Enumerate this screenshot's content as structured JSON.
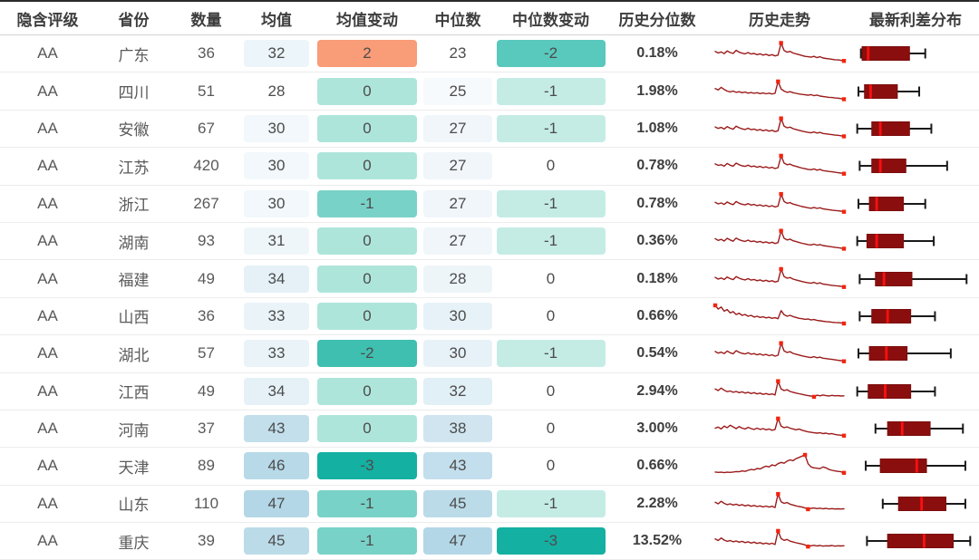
{
  "table": {
    "columns": [
      {
        "key": "rating",
        "label": "隐含评级"
      },
      {
        "key": "province",
        "label": "省份"
      },
      {
        "key": "count",
        "label": "数量"
      },
      {
        "key": "mean",
        "label": "均值"
      },
      {
        "key": "mean_change",
        "label": "均值变动"
      },
      {
        "key": "median",
        "label": "中位数"
      },
      {
        "key": "median_change",
        "label": "中位数变动"
      },
      {
        "key": "percentile",
        "label": "历史分位数"
      },
      {
        "key": "trend",
        "label": "历史走势"
      },
      {
        "key": "dist",
        "label": "最新利差分布"
      }
    ],
    "rows": [
      {
        "rating": "AA",
        "province": "广东",
        "count": 36,
        "mean": 32,
        "mean_bg": "#ECF5F9",
        "mean_change": 2,
        "mean_change_bg": "#F99C78",
        "median": 23,
        "median_bg": "#FFFFFF",
        "median_change": -2,
        "median_change_bg": "#59C8BD",
        "percentile": "0.18%",
        "trend": [
          58,
          50,
          55,
          47,
          60,
          52,
          48,
          63,
          54,
          49,
          46,
          52,
          45,
          48,
          42,
          46,
          40,
          44,
          38,
          42,
          36,
          40,
          98,
          62,
          54,
          58,
          50,
          46,
          42,
          38,
          34,
          32,
          30,
          34,
          28,
          32,
          26,
          24,
          22,
          20,
          18,
          17,
          15,
          12
        ],
        "box": {
          "lo": 5,
          "q1": 6,
          "med": 11,
          "q3": 45,
          "hi": 58
        }
      },
      {
        "rating": "AA",
        "province": "四川",
        "count": 51,
        "mean": 28,
        "mean_bg": "#FFFFFF",
        "mean_change": 0,
        "mean_change_bg": "#AEE5DB",
        "median": 25,
        "median_bg": "#F7FAFC",
        "median_change": -1,
        "median_change_bg": "#C4ECE5",
        "percentile": "1.98%",
        "trend": [
          62,
          55,
          68,
          58,
          50,
          46,
          50,
          44,
          47,
          42,
          45,
          40,
          43,
          39,
          42,
          38,
          41,
          37,
          40,
          36,
          39,
          96,
          60,
          50,
          44,
          47,
          42,
          39,
          36,
          34,
          32,
          30,
          33,
          28,
          31,
          26,
          24,
          22,
          20,
          19,
          17,
          16,
          14,
          11
        ],
        "box": {
          "lo": 3,
          "q1": 8,
          "med": 13,
          "q3": 35,
          "hi": 53
        }
      },
      {
        "rating": "AA",
        "province": "安徽",
        "count": 67,
        "mean": 30,
        "mean_bg": "#F2F8FB",
        "mean_change": 0,
        "mean_change_bg": "#AEE5DB",
        "median": 27,
        "median_bg": "#F0F6FA",
        "median_change": -1,
        "median_change_bg": "#C4ECE5",
        "percentile": "1.08%",
        "trend": [
          56,
          49,
          54,
          46,
          58,
          50,
          45,
          60,
          52,
          47,
          44,
          50,
          43,
          46,
          40,
          44,
          38,
          42,
          36,
          40,
          34,
          38,
          97,
          60,
          52,
          55,
          48,
          44,
          40,
          36,
          33,
          30,
          28,
          32,
          27,
          30,
          25,
          23,
          21,
          19,
          17,
          16,
          14,
          11
        ],
        "box": {
          "lo": 2,
          "q1": 14,
          "med": 21,
          "q3": 45,
          "hi": 63
        }
      },
      {
        "rating": "AA",
        "province": "江苏",
        "count": 420,
        "mean": 30,
        "mean_bg": "#F2F8FB",
        "mean_change": 0,
        "mean_change_bg": "#AEE5DB",
        "median": 27,
        "median_bg": "#F0F6FA",
        "median_change": 0,
        "median_change_bg": "#FFFFFF",
        "percentile": "0.78%",
        "trend": [
          57,
          50,
          53,
          46,
          59,
          51,
          46,
          61,
          53,
          48,
          45,
          51,
          44,
          47,
          41,
          45,
          39,
          43,
          37,
          41,
          35,
          39,
          96,
          61,
          53,
          56,
          49,
          45,
          41,
          37,
          34,
          31,
          29,
          33,
          27,
          31,
          25,
          23,
          21,
          19,
          17,
          15,
          13,
          10
        ],
        "box": {
          "lo": 4,
          "q1": 14,
          "med": 21,
          "q3": 42,
          "hi": 76
        }
      },
      {
        "rating": "AA",
        "province": "浙江",
        "count": 267,
        "mean": 30,
        "mean_bg": "#F2F8FB",
        "mean_change": -1,
        "mean_change_bg": "#79D2C7",
        "median": 27,
        "median_bg": "#F0F6FA",
        "median_change": -1,
        "median_change_bg": "#C4ECE5",
        "percentile": "0.78%",
        "trend": [
          55,
          48,
          52,
          45,
          57,
          49,
          44,
          59,
          51,
          46,
          43,
          49,
          42,
          45,
          39,
          43,
          37,
          41,
          35,
          39,
          33,
          37,
          95,
          59,
          51,
          54,
          47,
          43,
          39,
          35,
          32,
          29,
          27,
          31,
          26,
          29,
          24,
          22,
          20,
          18,
          16,
          15,
          13,
          10
        ],
        "box": {
          "lo": 3,
          "q1": 12,
          "med": 18,
          "q3": 40,
          "hi": 58
        }
      },
      {
        "rating": "AA",
        "province": "湖南",
        "count": 93,
        "mean": 31,
        "mean_bg": "#EFF6FA",
        "mean_change": 0,
        "mean_change_bg": "#AEE5DB",
        "median": 27,
        "median_bg": "#F0F6FA",
        "median_change": -1,
        "median_change_bg": "#C4ECE5",
        "percentile": "0.36%",
        "trend": [
          59,
          51,
          56,
          48,
          61,
          53,
          47,
          62,
          54,
          49,
          46,
          52,
          45,
          48,
          42,
          46,
          40,
          44,
          38,
          42,
          36,
          40,
          97,
          61,
          53,
          57,
          49,
          45,
          41,
          37,
          34,
          31,
          29,
          33,
          28,
          31,
          26,
          24,
          22,
          20,
          18,
          16,
          14,
          11
        ],
        "box": {
          "lo": 2,
          "q1": 10,
          "med": 18,
          "q3": 40,
          "hi": 65
        }
      },
      {
        "rating": "AA",
        "province": "福建",
        "count": 49,
        "mean": 34,
        "mean_bg": "#E5F1F7",
        "mean_change": 0,
        "mean_change_bg": "#AEE5DB",
        "median": 28,
        "median_bg": "#EDF5F9",
        "median_change": 0,
        "median_change_bg": "#FFFFFF",
        "percentile": "0.18%",
        "trend": [
          56,
          48,
          53,
          46,
          58,
          50,
          45,
          60,
          52,
          47,
          44,
          50,
          43,
          46,
          40,
          44,
          38,
          42,
          36,
          40,
          34,
          38,
          96,
          60,
          52,
          55,
          48,
          44,
          40,
          36,
          33,
          30,
          28,
          32,
          26,
          30,
          24,
          22,
          20,
          18,
          16,
          15,
          13,
          10
        ],
        "box": {
          "lo": 4,
          "q1": 17,
          "med": 24,
          "q3": 47,
          "hi": 92
        }
      },
      {
        "rating": "AA",
        "province": "山西",
        "count": 36,
        "mean": 33,
        "mean_bg": "#E9F3F8",
        "mean_change": 0,
        "mean_change_bg": "#AEE5DB",
        "median": 30,
        "median_bg": "#E7F2F8",
        "median_change": 0,
        "median_change_bg": "#FFFFFF",
        "percentile": "0.66%",
        "trend": [
          100,
          82,
          92,
          72,
          80,
          64,
          70,
          56,
          62,
          52,
          56,
          48,
          52,
          44,
          48,
          42,
          45,
          40,
          43,
          38,
          41,
          36,
          75,
          55,
          48,
          52,
          46,
          42,
          38,
          36,
          33,
          35,
          30,
          32,
          28,
          26,
          24,
          22,
          21,
          19,
          18,
          17,
          16,
          13
        ],
        "box": {
          "lo": 4,
          "q1": 14,
          "med": 27,
          "q3": 46,
          "hi": 66
        }
      },
      {
        "rating": "AA",
        "province": "湖北",
        "count": 57,
        "mean": 33,
        "mean_bg": "#E9F3F8",
        "mean_change": -2,
        "mean_change_bg": "#3FBFB0",
        "median": 30,
        "median_bg": "#E7F2F8",
        "median_change": -1,
        "median_change_bg": "#C4ECE5",
        "percentile": "0.54%",
        "trend": [
          57,
          49,
          54,
          47,
          59,
          51,
          46,
          61,
          53,
          48,
          45,
          51,
          44,
          47,
          41,
          45,
          39,
          43,
          37,
          41,
          35,
          39,
          97,
          60,
          52,
          56,
          48,
          44,
          40,
          36,
          33,
          30,
          28,
          32,
          27,
          30,
          25,
          23,
          21,
          19,
          17,
          15,
          13,
          10
        ],
        "box": {
          "lo": 3,
          "q1": 12,
          "med": 26,
          "q3": 43,
          "hi": 79
        }
      },
      {
        "rating": "AA",
        "province": "江西",
        "count": 49,
        "mean": 34,
        "mean_bg": "#E5F1F7",
        "mean_change": 0,
        "mean_change_bg": "#AEE5DB",
        "median": 32,
        "median_bg": "#E1EFF6",
        "median_change": 0,
        "median_change_bg": "#FFFFFF",
        "percentile": "2.94%",
        "trend": [
          60,
          52,
          64,
          54,
          47,
          50,
          44,
          48,
          42,
          46,
          40,
          44,
          38,
          42,
          36,
          40,
          34,
          38,
          33,
          36,
          31,
          97,
          60,
          52,
          56,
          48,
          44,
          40,
          37,
          34,
          31,
          28,
          26,
          22,
          30,
          27,
          31,
          28,
          26,
          29,
          27,
          28,
          26,
          27
        ],
        "box": {
          "lo": 2,
          "q1": 11,
          "med": 25,
          "q3": 46,
          "hi": 66
        }
      },
      {
        "rating": "AA",
        "province": "河南",
        "count": 37,
        "mean": 43,
        "mean_bg": "#C3DFEC",
        "mean_change": 0,
        "mean_change_bg": "#AEE5DB",
        "median": 38,
        "median_bg": "#D0E5F0",
        "median_change": 0,
        "median_change_bg": "#FFFFFF",
        "percentile": "3.00%",
        "trend": [
          50,
          55,
          46,
          60,
          52,
          64,
          56,
          48,
          58,
          50,
          46,
          54,
          48,
          44,
          50,
          44,
          48,
          42,
          46,
          40,
          44,
          96,
          60,
          52,
          56,
          50,
          46,
          42,
          46,
          40,
          36,
          32,
          30,
          28,
          26,
          28,
          24,
          26,
          22,
          24,
          20,
          18,
          16,
          14
        ],
        "box": {
          "lo": 17,
          "q1": 27,
          "med": 39,
          "q3": 62,
          "hi": 89
        }
      },
      {
        "rating": "AA",
        "province": "天津",
        "count": 89,
        "mean": 46,
        "mean_bg": "#B7D9E8",
        "mean_change": -3,
        "mean_change_bg": "#14B0A2",
        "median": 43,
        "median_bg": "#C3DEEC",
        "median_change": 0,
        "median_change_bg": "#FFFFFF",
        "percentile": "0.66%",
        "trend": [
          18,
          16,
          17,
          15,
          17,
          16,
          18,
          20,
          19,
          23,
          21,
          26,
          30,
          28,
          35,
          32,
          40,
          46,
          42,
          52,
          48,
          58,
          64,
          60,
          70,
          76,
          72,
          82,
          88,
          94,
          100,
          58,
          42,
          38,
          36,
          34,
          42,
          38,
          30,
          26,
          23,
          21,
          19,
          14
        ],
        "box": {
          "lo": 9,
          "q1": 21,
          "med": 51,
          "q3": 59,
          "hi": 91
        }
      },
      {
        "rating": "AA",
        "province": "山东",
        "count": 110,
        "mean": 47,
        "mean_bg": "#B3D7E7",
        "mean_change": -1,
        "mean_change_bg": "#79D2C7",
        "median": 45,
        "median_bg": "#BBDBE9",
        "median_change": -1,
        "median_change_bg": "#C4ECE5",
        "percentile": "2.28%",
        "trend": [
          55,
          48,
          60,
          50,
          44,
          48,
          42,
          46,
          40,
          44,
          38,
          42,
          36,
          40,
          35,
          38,
          33,
          37,
          32,
          36,
          30,
          95,
          58,
          50,
          54,
          46,
          42,
          38,
          35,
          32,
          28,
          22,
          26,
          28,
          25,
          27,
          24,
          26,
          23,
          25,
          23,
          24,
          23,
          24
        ],
        "box": {
          "lo": 23,
          "q1": 36,
          "med": 55,
          "q3": 75,
          "hi": 91
        }
      },
      {
        "rating": "AA",
        "province": "重庆",
        "count": 39,
        "mean": 45,
        "mean_bg": "#BBDBE9",
        "mean_change": -1,
        "mean_change_bg": "#79D2C7",
        "median": 47,
        "median_bg": "#B3D7E7",
        "median_change": -3,
        "median_change_bg": "#14B0A2",
        "percentile": "13.52%",
        "trend": [
          58,
          50,
          62,
          52,
          46,
          50,
          44,
          48,
          42,
          46,
          40,
          44,
          38,
          42,
          36,
          40,
          34,
          38,
          33,
          37,
          31,
          96,
          59,
          51,
          55,
          47,
          43,
          39,
          36,
          33,
          29,
          21,
          25,
          27,
          24,
          26,
          23,
          25,
          24,
          26,
          23,
          25,
          24,
          25
        ],
        "box": {
          "lo": 10,
          "q1": 27,
          "med": 57,
          "q3": 81,
          "hi": 95
        }
      }
    ]
  },
  "colors": {
    "spark_line": "#9B1B1B",
    "spark_marker": "#F2250F",
    "box_fill": "#8B0E0E",
    "box_stroke": "#7A0C0C",
    "box_median": "#FF1010",
    "whisker": "#1A1A1A"
  }
}
